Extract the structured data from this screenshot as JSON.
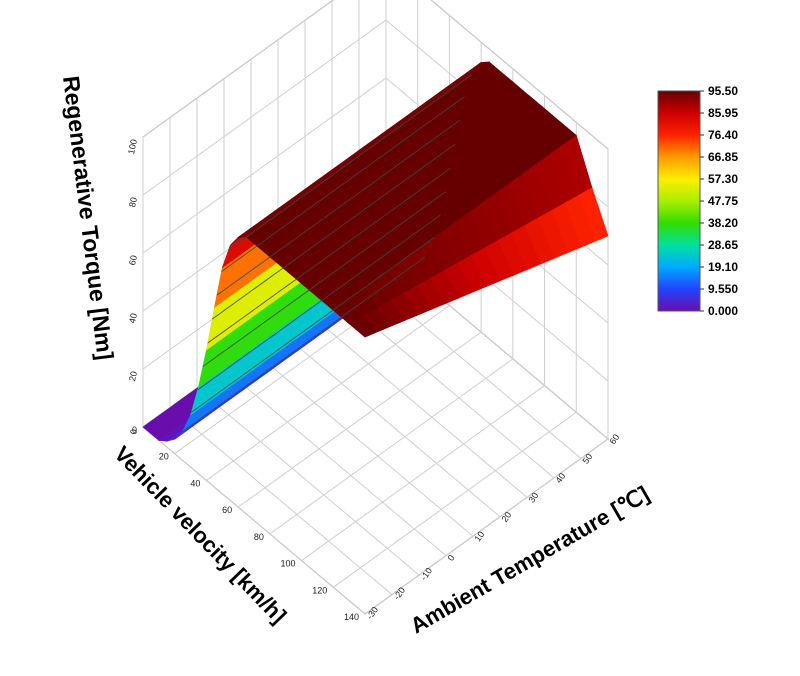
{
  "chart_data": {
    "type": "surface",
    "zlabel": "Regenerative Torque [Nm]",
    "xlabel": "Vehicle velocity [km/h]",
    "ylabel": "Ambient Temperature [℃]",
    "x_ticks": [
      "0",
      "20",
      "40",
      "60",
      "80",
      "100",
      "120",
      "140"
    ],
    "y_ticks": [
      "-30",
      "-20",
      "-10",
      "0",
      "10",
      "20",
      "30",
      "40",
      "50",
      "60"
    ],
    "z_ticks": [
      "0",
      "20",
      "40",
      "60",
      "80",
      "100"
    ],
    "xlim": [
      0,
      140
    ],
    "ylim": [
      -30,
      60
    ],
    "zlim": [
      0,
      100
    ],
    "colorbar_ticks": [
      "95.50",
      "85.95",
      "76.40",
      "66.85",
      "57.30",
      "47.75",
      "38.20",
      "28.65",
      "19.10",
      "9.550",
      "0.000"
    ],
    "colorbar_range": [
      0,
      95.5
    ],
    "colormap": [
      "#6a0dad",
      "#2244ff",
      "#00aaff",
      "#00e0a0",
      "#33dd00",
      "#aaee00",
      "#ffee00",
      "#ff9900",
      "#ff2200",
      "#cc0000",
      "#660000"
    ],
    "surface": {
      "velocity": [
        0,
        5,
        10,
        15,
        20,
        25,
        30,
        35,
        40,
        45,
        50,
        55,
        60,
        65,
        70,
        80,
        90,
        100,
        110,
        120,
        130,
        140
      ],
      "temperature_at_step_transition": [
        -30,
        -20,
        -10,
        0,
        10,
        20,
        30,
        40,
        50,
        60
      ],
      "torque_profile_at_low_temp": [
        0,
        0,
        0,
        2,
        5,
        10,
        18,
        30,
        45,
        62,
        78,
        88,
        93,
        95.5,
        95.5,
        95.5,
        95.5,
        95.5,
        95.5,
        95.5,
        95.5,
        95.5
      ],
      "torque_profile_at_high_temp": [
        0,
        0,
        0,
        2,
        5,
        10,
        18,
        30,
        45,
        62,
        78,
        88,
        93,
        95.5,
        95.5,
        95.5,
        95.5,
        95.5,
        95.5,
        95.5,
        82,
        70
      ],
      "min_torque": 0,
      "max_torque": 95.5
    }
  }
}
